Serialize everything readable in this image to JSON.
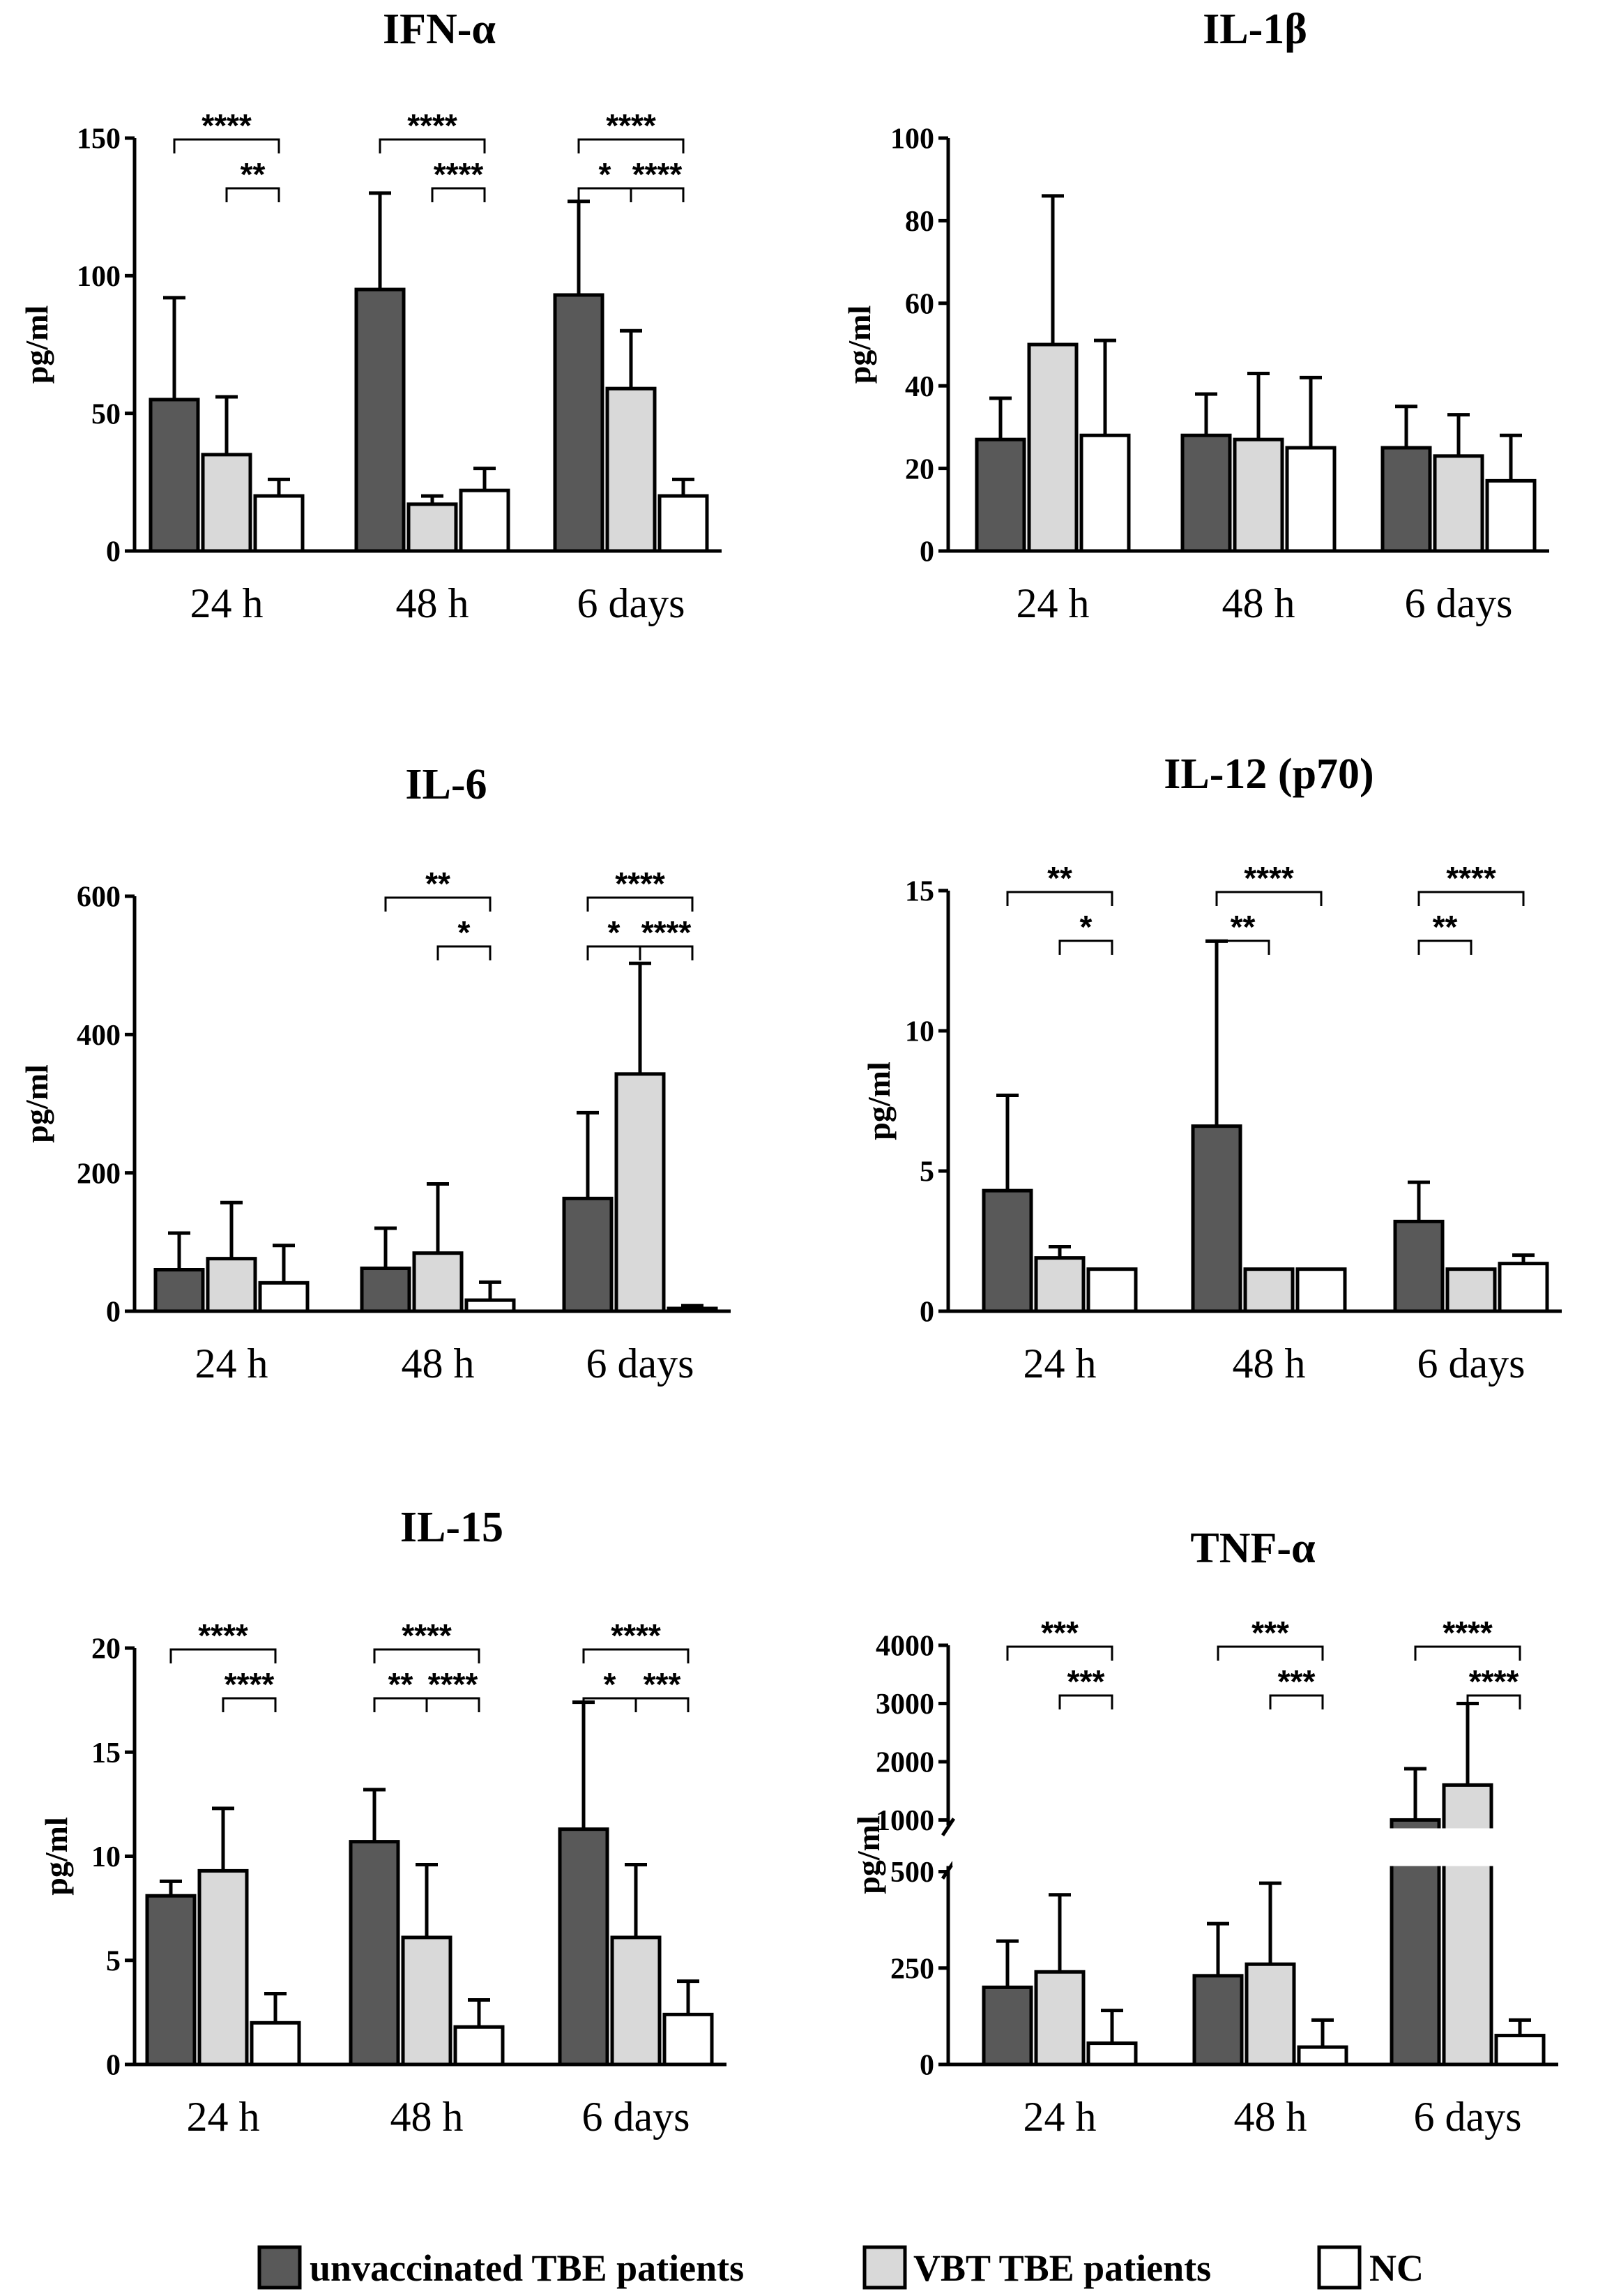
{
  "legend": {
    "items": [
      {
        "label": "unvaccinated TBE patients",
        "color": "#595959"
      },
      {
        "label": "VBT TBE patients",
        "color": "#d9d9d9"
      },
      {
        "label": "NC",
        "color": "#ffffff"
      }
    ]
  },
  "chart_data": [
    {
      "type": "bar",
      "title": "IFN-α",
      "ylabel": "pg/ml",
      "categories": [
        "24 h",
        "48 h",
        "6 days"
      ],
      "ylim": [
        0,
        150
      ],
      "yticks": [
        0,
        50,
        100,
        150
      ],
      "series": [
        {
          "name": "unvaccinated TBE patients",
          "values": [
            55,
            95,
            93
          ],
          "errors": [
            92,
            130,
            127
          ]
        },
        {
          "name": "VBT TBE patients",
          "values": [
            35,
            17,
            59
          ],
          "errors": [
            56,
            20,
            80
          ]
        },
        {
          "name": "NC",
          "values": [
            20,
            22,
            20
          ],
          "errors": [
            26,
            30,
            26
          ]
        }
      ],
      "significance": [
        {
          "group": 0,
          "from": 0,
          "to": 2,
          "label": "****",
          "level": 0
        },
        {
          "group": 0,
          "from": 1,
          "to": 2,
          "label": "**",
          "level": 1
        },
        {
          "group": 1,
          "from": 0,
          "to": 2,
          "label": "****",
          "level": 0
        },
        {
          "group": 1,
          "from": 1,
          "to": 2,
          "label": "****",
          "level": 1
        },
        {
          "group": 2,
          "from": 0,
          "to": 2,
          "label": "****",
          "level": 0
        },
        {
          "group": 2,
          "from": 0,
          "to": 1,
          "label": "*",
          "level": 1
        },
        {
          "group": 2,
          "from": 1,
          "to": 2,
          "label": "****",
          "level": 1
        }
      ]
    },
    {
      "type": "bar",
      "title": "IL-1β",
      "ylabel": "pg/ml",
      "categories": [
        "24 h",
        "48 h",
        "6 days"
      ],
      "ylim": [
        0,
        100
      ],
      "yticks": [
        0,
        20,
        40,
        60,
        80,
        100
      ],
      "series": [
        {
          "name": "unvaccinated TBE patients",
          "values": [
            27,
            28,
            25
          ],
          "errors": [
            37,
            38,
            35
          ]
        },
        {
          "name": "VBT TBE patients",
          "values": [
            50,
            27,
            23
          ],
          "errors": [
            86,
            43,
            33
          ]
        },
        {
          "name": "NC",
          "values": [
            28,
            25,
            17
          ],
          "errors": [
            51,
            42,
            28
          ]
        }
      ],
      "significance": []
    },
    {
      "type": "bar",
      "title": "IL-6",
      "ylabel": "pg/ml",
      "categories": [
        "24 h",
        "48 h",
        "6 days"
      ],
      "ylim": [
        0,
        600
      ],
      "yticks": [
        0,
        200,
        400,
        600
      ],
      "series": [
        {
          "name": "unvaccinated TBE patients",
          "values": [
            60,
            62,
            163
          ],
          "errors": [
            113,
            120,
            287
          ]
        },
        {
          "name": "VBT TBE patients",
          "values": [
            76,
            84,
            343
          ],
          "errors": [
            157,
            184,
            503
          ]
        },
        {
          "name": "NC",
          "values": [
            41,
            16,
            4
          ],
          "errors": [
            95,
            42,
            8
          ]
        }
      ],
      "significance": [
        {
          "group": 1,
          "from": 0,
          "to": 2,
          "label": "**",
          "level": 0
        },
        {
          "group": 1,
          "from": 1,
          "to": 2,
          "label": "*",
          "level": 1
        },
        {
          "group": 2,
          "from": 0,
          "to": 2,
          "label": "****",
          "level": 0
        },
        {
          "group": 2,
          "from": 0,
          "to": 1,
          "label": "*",
          "level": 1
        },
        {
          "group": 2,
          "from": 1,
          "to": 2,
          "label": "****",
          "level": 1
        }
      ]
    },
    {
      "type": "bar",
      "title": "IL-12  (p70)",
      "ylabel": "pg/ml",
      "categories": [
        "24 h",
        "48 h",
        "6 days"
      ],
      "ylim": [
        0,
        15
      ],
      "yticks": [
        0,
        5,
        10,
        15
      ],
      "series": [
        {
          "name": "unvaccinated TBE patients",
          "values": [
            4.3,
            6.6,
            3.2
          ],
          "errors": [
            7.7,
            13.2,
            4.6
          ]
        },
        {
          "name": "VBT TBE patients",
          "values": [
            1.9,
            1.5,
            1.5
          ],
          "errors": [
            2.3,
            1.5,
            1.5
          ]
        },
        {
          "name": "NC",
          "values": [
            1.5,
            1.5,
            1.7
          ],
          "errors": [
            1.5,
            1.5,
            2.0
          ]
        }
      ],
      "significance": [
        {
          "group": 0,
          "from": 0,
          "to": 2,
          "label": "**",
          "level": 0
        },
        {
          "group": 0,
          "from": 1,
          "to": 2,
          "label": "*",
          "level": 1
        },
        {
          "group": 1,
          "from": 0,
          "to": 2,
          "label": "****",
          "level": 0
        },
        {
          "group": 1,
          "from": 0,
          "to": 1,
          "label": "**",
          "level": 1
        },
        {
          "group": 2,
          "from": 0,
          "to": 2,
          "label": "****",
          "level": 0
        },
        {
          "group": 2,
          "from": 0,
          "to": 1,
          "label": "**",
          "level": 1
        }
      ]
    },
    {
      "type": "bar",
      "title": "IL-15",
      "ylabel": "pg/ml",
      "categories": [
        "24 h",
        "48 h",
        "6 days"
      ],
      "ylim": [
        0,
        20
      ],
      "yticks": [
        0,
        5,
        10,
        15,
        20
      ],
      "series": [
        {
          "name": "unvaccinated TBE patients",
          "values": [
            8.1,
            10.7,
            11.3
          ],
          "errors": [
            8.8,
            13.2,
            17.4
          ]
        },
        {
          "name": "VBT TBE patients",
          "values": [
            9.3,
            6.1,
            6.1
          ],
          "errors": [
            12.3,
            9.6,
            9.6
          ]
        },
        {
          "name": "NC",
          "values": [
            2.0,
            1.8,
            2.4
          ],
          "errors": [
            3.4,
            3.1,
            4.0
          ]
        }
      ],
      "significance": [
        {
          "group": 0,
          "from": 0,
          "to": 2,
          "label": "****",
          "level": 0
        },
        {
          "group": 0,
          "from": 1,
          "to": 2,
          "label": "****",
          "level": 1
        },
        {
          "group": 1,
          "from": 0,
          "to": 2,
          "label": "****",
          "level": 0
        },
        {
          "group": 1,
          "from": 0,
          "to": 1,
          "label": "**",
          "level": 1
        },
        {
          "group": 1,
          "from": 1,
          "to": 2,
          "label": "****",
          "level": 1
        },
        {
          "group": 2,
          "from": 0,
          "to": 2,
          "label": "****",
          "level": 0
        },
        {
          "group": 2,
          "from": 0,
          "to": 1,
          "label": "*",
          "level": 1
        },
        {
          "group": 2,
          "from": 1,
          "to": 2,
          "label": "***",
          "level": 1
        }
      ]
    },
    {
      "type": "bar",
      "title": "TNF-α",
      "ylabel": "pg/ml",
      "categories": [
        "24 h",
        "48 h",
        "6 days"
      ],
      "broken_axis": {
        "lower": {
          "range": [
            0,
            500
          ],
          "ticks": [
            0,
            250,
            500
          ]
        },
        "upper": {
          "range": [
            1000,
            4000
          ],
          "ticks": [
            1000,
            2000,
            3000,
            4000
          ]
        }
      },
      "series": [
        {
          "name": "unvaccinated TBE patients",
          "values": [
            200,
            230,
            1000
          ],
          "errors": [
            320,
            365,
            1880
          ]
        },
        {
          "name": "VBT TBE patients",
          "values": [
            240,
            260,
            1600
          ],
          "errors": [
            440,
            470,
            3000
          ]
        },
        {
          "name": "NC",
          "values": [
            55,
            45,
            75
          ],
          "errors": [
            140,
            115,
            115
          ]
        }
      ],
      "significance": [
        {
          "group": 0,
          "from": 0,
          "to": 2,
          "label": "***",
          "level": 0
        },
        {
          "group": 0,
          "from": 1,
          "to": 2,
          "label": "***",
          "level": 1
        },
        {
          "group": 1,
          "from": 0,
          "to": 2,
          "label": "***",
          "level": 0
        },
        {
          "group": 1,
          "from": 1,
          "to": 2,
          "label": "***",
          "level": 1
        },
        {
          "group": 2,
          "from": 0,
          "to": 2,
          "label": "****",
          "level": 0
        },
        {
          "group": 2,
          "from": 1,
          "to": 2,
          "label": "****",
          "level": 1
        }
      ]
    }
  ]
}
